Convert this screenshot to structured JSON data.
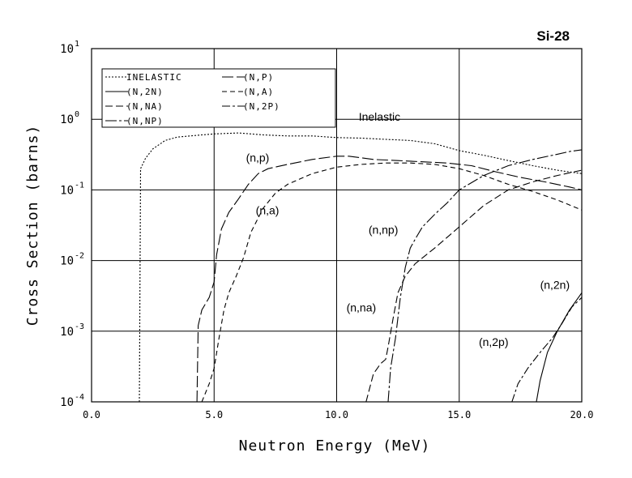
{
  "chart_data": {
    "type": "line",
    "title": "Si-28",
    "xlabel": "Neutron Energy (MeV)",
    "ylabel": "Cross Section (barns)",
    "xlim": [
      0,
      20
    ],
    "ylim": [
      0.0001,
      10
    ],
    "yscale": "log",
    "grid": true,
    "legend_position": "top-left",
    "x_ticks": [
      "0.0",
      "5.0",
      "10.0",
      "15.0",
      "20.0"
    ],
    "y_ticks": [
      {
        "base": "10",
        "exp": "-4"
      },
      {
        "base": "10",
        "exp": "-3"
      },
      {
        "base": "10",
        "exp": "-2"
      },
      {
        "base": "10",
        "exp": "-1"
      },
      {
        "base": "10",
        "exp": "0"
      },
      {
        "base": "10",
        "exp": "1"
      }
    ],
    "legend": [
      {
        "label": "INELASTIC",
        "dash": "2,2"
      },
      {
        "label": "(N,2N)",
        "dash": ""
      },
      {
        "label": "(N,NA)",
        "dash": "9,4"
      },
      {
        "label": "(N,NP)",
        "dash": "14,3,3,3"
      },
      {
        "label": "(N,P)",
        "dash": "14,4"
      },
      {
        "label": "(N,A)",
        "dash": "6,4"
      },
      {
        "label": "(N,2P)",
        "dash": "10,3,3,3"
      }
    ],
    "annotations": [
      {
        "text": "Inelastic",
        "x": 10.9,
        "y": 0.95
      },
      {
        "text": "(n,p)",
        "x": 6.3,
        "y": 0.25
      },
      {
        "text": "(n,a)",
        "x": 6.7,
        "y": 0.045
      },
      {
        "text": "(n,np)",
        "x": 11.3,
        "y": 0.024
      },
      {
        "text": "(n,na)",
        "x": 10.4,
        "y": 0.0019
      },
      {
        "text": "(n,2n)",
        "x": 18.3,
        "y": 0.004
      },
      {
        "text": "(n,2p)",
        "x": 15.8,
        "y": 0.00062
      }
    ],
    "series": [
      {
        "name": "INELASTIC",
        "dash": "2,2",
        "points": [
          [
            1.95,
            0.0001
          ],
          [
            2.0,
            0.2
          ],
          [
            2.2,
            0.28
          ],
          [
            2.5,
            0.38
          ],
          [
            3.0,
            0.5
          ],
          [
            3.5,
            0.56
          ],
          [
            4.5,
            0.6
          ],
          [
            5.0,
            0.62
          ],
          [
            6.0,
            0.64
          ],
          [
            7.0,
            0.6
          ],
          [
            8.0,
            0.58
          ],
          [
            9.0,
            0.58
          ],
          [
            10.0,
            0.55
          ],
          [
            11.0,
            0.54
          ],
          [
            12.0,
            0.52
          ],
          [
            13.0,
            0.5
          ],
          [
            14.0,
            0.45
          ],
          [
            15.0,
            0.36
          ],
          [
            16.0,
            0.31
          ],
          [
            17.0,
            0.26
          ],
          [
            18.0,
            0.22
          ],
          [
            19.0,
            0.19
          ],
          [
            20.0,
            0.17
          ]
        ]
      },
      {
        "name": "(N,P)",
        "dash": "14,4",
        "points": [
          [
            4.3,
            0.0001
          ],
          [
            4.35,
            0.0012
          ],
          [
            4.5,
            0.002
          ],
          [
            4.8,
            0.003
          ],
          [
            5.0,
            0.005
          ],
          [
            5.1,
            0.012
          ],
          [
            5.3,
            0.028
          ],
          [
            5.6,
            0.048
          ],
          [
            6.0,
            0.075
          ],
          [
            6.4,
            0.12
          ],
          [
            6.8,
            0.17
          ],
          [
            7.2,
            0.2
          ],
          [
            8.0,
            0.23
          ],
          [
            9.0,
            0.27
          ],
          [
            10.0,
            0.3
          ],
          [
            10.5,
            0.3
          ],
          [
            11.5,
            0.27
          ],
          [
            12.5,
            0.26
          ],
          [
            13.5,
            0.25
          ],
          [
            14.5,
            0.24
          ],
          [
            15.5,
            0.22
          ],
          [
            16.5,
            0.18
          ],
          [
            17.5,
            0.15
          ],
          [
            18.5,
            0.13
          ],
          [
            19.5,
            0.11
          ],
          [
            20.0,
            0.1
          ]
        ]
      },
      {
        "name": "(N,A)",
        "dash": "6,4",
        "points": [
          [
            4.5,
            0.0001
          ],
          [
            4.8,
            0.00018
          ],
          [
            5.0,
            0.0003
          ],
          [
            5.2,
            0.0008
          ],
          [
            5.4,
            0.002
          ],
          [
            5.6,
            0.0035
          ],
          [
            5.9,
            0.006
          ],
          [
            6.2,
            0.011
          ],
          [
            6.5,
            0.025
          ],
          [
            7.0,
            0.055
          ],
          [
            7.5,
            0.09
          ],
          [
            8.0,
            0.12
          ],
          [
            9.0,
            0.17
          ],
          [
            10.0,
            0.21
          ],
          [
            11.0,
            0.23
          ],
          [
            12.0,
            0.24
          ],
          [
            13.0,
            0.24
          ],
          [
            14.0,
            0.23
          ],
          [
            15.0,
            0.2
          ],
          [
            16.0,
            0.16
          ],
          [
            17.0,
            0.12
          ],
          [
            18.0,
            0.095
          ],
          [
            19.0,
            0.072
          ],
          [
            20.0,
            0.052
          ]
        ]
      },
      {
        "name": "(N,NP)",
        "dash": "14,3,3,3",
        "points": [
          [
            12.1,
            0.0001
          ],
          [
            12.2,
            0.0003
          ],
          [
            12.4,
            0.0008
          ],
          [
            12.6,
            0.003
          ],
          [
            12.8,
            0.008
          ],
          [
            13.0,
            0.015
          ],
          [
            13.2,
            0.02
          ],
          [
            13.5,
            0.03
          ],
          [
            14.0,
            0.045
          ],
          [
            14.5,
            0.065
          ],
          [
            15.0,
            0.1
          ],
          [
            16.0,
            0.16
          ],
          [
            17.0,
            0.22
          ],
          [
            18.0,
            0.27
          ],
          [
            19.0,
            0.32
          ],
          [
            19.5,
            0.35
          ],
          [
            20.0,
            0.37
          ]
        ]
      },
      {
        "name": "(N,NA)",
        "dash": "9,4",
        "points": [
          [
            11.2,
            0.0001
          ],
          [
            11.5,
            0.00025
          ],
          [
            11.8,
            0.00035
          ],
          [
            12.0,
            0.0004
          ],
          [
            12.1,
            0.0006
          ],
          [
            12.3,
            0.0015
          ],
          [
            12.5,
            0.0035
          ],
          [
            12.8,
            0.006
          ],
          [
            13.2,
            0.009
          ],
          [
            14.0,
            0.015
          ],
          [
            15.0,
            0.03
          ],
          [
            16.0,
            0.06
          ],
          [
            17.0,
            0.1
          ],
          [
            18.0,
            0.13
          ],
          [
            19.0,
            0.16
          ],
          [
            20.0,
            0.19
          ]
        ]
      },
      {
        "name": "(N,2N)",
        "dash": "",
        "points": [
          [
            18.15,
            0.0001
          ],
          [
            18.3,
            0.0002
          ],
          [
            18.6,
            0.0005
          ],
          [
            19.0,
            0.001
          ],
          [
            19.5,
            0.002
          ],
          [
            20.0,
            0.0035
          ]
        ]
      },
      {
        "name": "(N,2P)",
        "dash": "10,3,3,3",
        "points": [
          [
            17.15,
            0.0001
          ],
          [
            17.4,
            0.00018
          ],
          [
            17.8,
            0.0003
          ],
          [
            18.3,
            0.0005
          ],
          [
            18.8,
            0.0008
          ],
          [
            19.2,
            0.0013
          ],
          [
            19.6,
            0.0022
          ],
          [
            20.0,
            0.003
          ]
        ]
      }
    ]
  }
}
